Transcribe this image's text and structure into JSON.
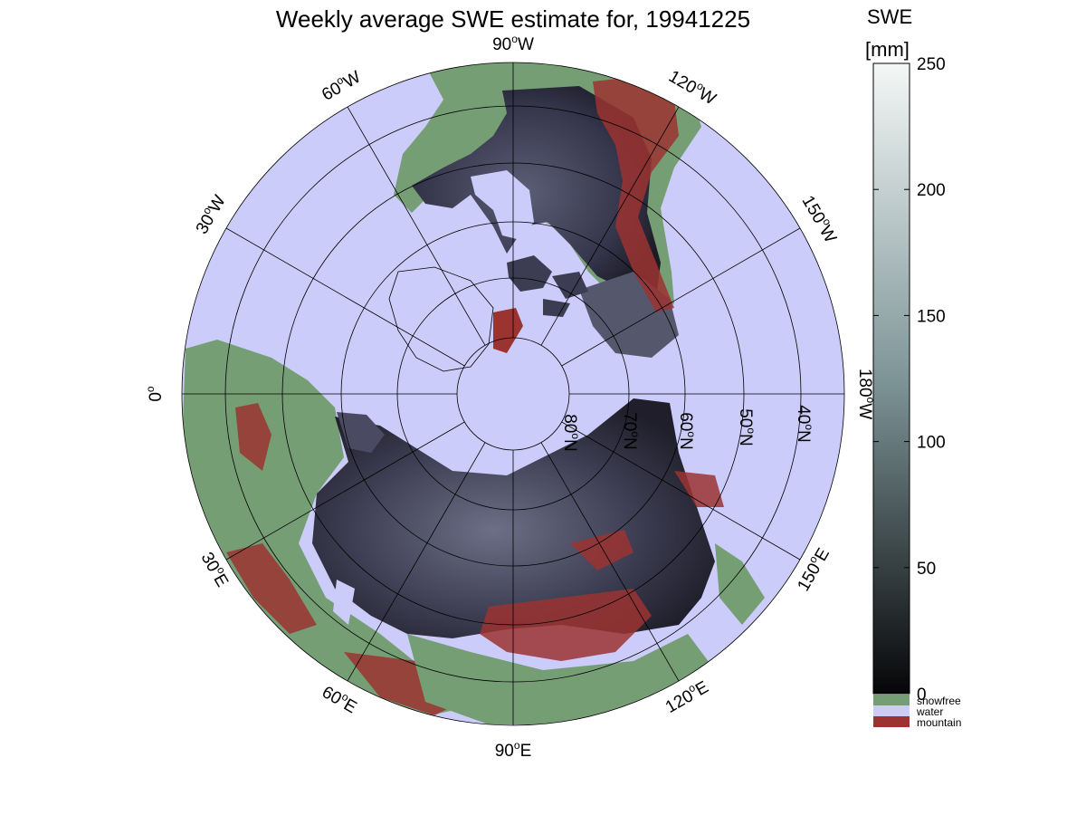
{
  "title": "Weekly average SWE estimate for, 19941225",
  "colorbar": {
    "title": "SWE",
    "unit": "[mm]",
    "range": [
      0,
      250
    ],
    "ticks": [
      {
        "value": 0,
        "label": "0"
      },
      {
        "value": 50,
        "label": "50"
      },
      {
        "value": 100,
        "label": "100"
      },
      {
        "value": 150,
        "label": "150"
      },
      {
        "value": 200,
        "label": "200"
      },
      {
        "value": 250,
        "label": "250"
      }
    ],
    "gradient_low": "#060608",
    "gradient_mid": "#7e9598",
    "gradient_high": "#f4f7f6"
  },
  "legend": [
    {
      "label": "snowfree",
      "color": "#769e75"
    },
    {
      "label": "water",
      "color": "#ccccfa"
    },
    {
      "label": "mountain",
      "color": "#9b3331"
    }
  ],
  "meridian_labels": [
    {
      "deg": "90",
      "suffix": "W"
    },
    {
      "deg": "120",
      "suffix": "W"
    },
    {
      "deg": "150",
      "suffix": "W"
    },
    {
      "deg": "180",
      "suffix": "W"
    },
    {
      "deg": "150",
      "suffix": "E"
    },
    {
      "deg": "120",
      "suffix": "E"
    },
    {
      "deg": "90",
      "suffix": "E"
    },
    {
      "deg": "60",
      "suffix": "E"
    },
    {
      "deg": "30",
      "suffix": "E"
    },
    {
      "deg": "0",
      "suffix": ""
    },
    {
      "deg": "30",
      "suffix": "W"
    },
    {
      "deg": "60",
      "suffix": "W"
    }
  ],
  "parallel_labels": [
    {
      "deg": "80",
      "suffix": "N"
    },
    {
      "deg": "70",
      "suffix": "N"
    },
    {
      "deg": "60",
      "suffix": "N"
    },
    {
      "deg": "50",
      "suffix": "N"
    },
    {
      "deg": "40",
      "suffix": "N"
    }
  ],
  "colors": {
    "water": "#ccccfa",
    "snowfree": "#769e75",
    "mountain": "#9b3331",
    "snow_dark": "#1c1b25",
    "snow_mid": "#4a4a62",
    "snow_light": "#7b7f95"
  }
}
